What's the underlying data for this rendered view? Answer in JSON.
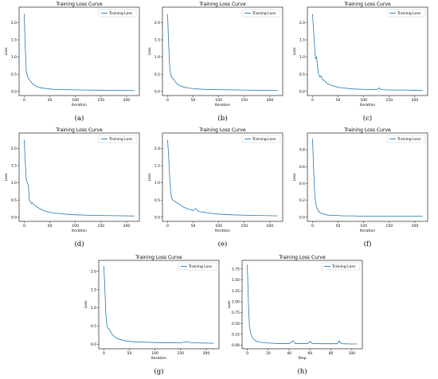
{
  "colors": {
    "line": "#1f77b4",
    "axis": "#000000",
    "legend_border": "#cccccc"
  },
  "chart_data": [
    {
      "type": "line",
      "sublabel": "(a)",
      "title": "Training Loss Curve",
      "xlabel": "Iteration",
      "ylabel": "Loss",
      "xlim": [
        -10,
        225
      ],
      "ylim": [
        -0.12,
        2.45
      ],
      "xticks": [
        0,
        50,
        100,
        150,
        200
      ],
      "yticks": [
        0.0,
        0.5,
        1.0,
        1.5,
        2.0
      ],
      "ytick_labels": [
        "0.0",
        "0.5",
        "1.0",
        "1.5",
        "2.0"
      ],
      "legend": "upper right",
      "series": [
        {
          "name": "Training Loss",
          "x": [
            0,
            2,
            4,
            6,
            8,
            10,
            12,
            15,
            20,
            25,
            30,
            40,
            50,
            60,
            80,
            100,
            125,
            150,
            175,
            200,
            215
          ],
          "y": [
            2.25,
            1.3,
            0.6,
            0.45,
            0.38,
            0.34,
            0.3,
            0.24,
            0.18,
            0.14,
            0.11,
            0.09,
            0.07,
            0.06,
            0.05,
            0.045,
            0.04,
            0.035,
            0.03,
            0.03,
            0.025
          ]
        }
      ]
    },
    {
      "type": "line",
      "sublabel": "(b)",
      "title": "Training Loss Curve",
      "xlabel": "Iteration",
      "ylabel": "Loss",
      "xlim": [
        -10,
        225
      ],
      "ylim": [
        -0.12,
        2.45
      ],
      "xticks": [
        0,
        50,
        100,
        150,
        200
      ],
      "yticks": [
        0.0,
        0.5,
        1.0,
        1.5,
        2.0
      ],
      "ytick_labels": [
        "0.0",
        "0.5",
        "1.0",
        "1.5",
        "2.0"
      ],
      "legend": "upper right",
      "series": [
        {
          "name": "Training Loss",
          "x": [
            0,
            2,
            4,
            6,
            8,
            10,
            12,
            15,
            20,
            25,
            30,
            40,
            50,
            60,
            80,
            100,
            125,
            150,
            175,
            200,
            215
          ],
          "y": [
            2.25,
            1.4,
            0.75,
            0.5,
            0.42,
            0.38,
            0.35,
            0.28,
            0.2,
            0.16,
            0.13,
            0.1,
            0.08,
            0.07,
            0.055,
            0.05,
            0.045,
            0.04,
            0.035,
            0.03,
            0.03
          ]
        }
      ]
    },
    {
      "type": "line",
      "sublabel": "(c)",
      "title": "Training Loss Curve",
      "xlabel": "Iteration",
      "ylabel": "Loss",
      "xlim": [
        -10,
        225
      ],
      "ylim": [
        -0.12,
        2.45
      ],
      "xticks": [
        0,
        50,
        100,
        150,
        200
      ],
      "yticks": [
        0.0,
        0.5,
        1.0,
        1.5,
        2.0
      ],
      "ytick_labels": [
        "0.0",
        "0.5",
        "1.0",
        "1.5",
        "2.0"
      ],
      "legend": "upper right",
      "series": [
        {
          "name": "Training Loss",
          "x": [
            0,
            2,
            4,
            6,
            8,
            10,
            12,
            14,
            16,
            20,
            25,
            30,
            40,
            50,
            60,
            80,
            100,
            125,
            130,
            135,
            150,
            175,
            200,
            215
          ],
          "y": [
            2.25,
            1.8,
            1.3,
            0.95,
            1.0,
            0.7,
            0.5,
            0.42,
            0.45,
            0.35,
            0.28,
            0.22,
            0.16,
            0.12,
            0.1,
            0.07,
            0.06,
            0.05,
            0.1,
            0.05,
            0.04,
            0.04,
            0.035,
            0.03
          ]
        }
      ]
    },
    {
      "type": "line",
      "sublabel": "(d)",
      "title": "Training Loss Curve",
      "xlabel": "Iteration",
      "ylabel": "Loss",
      "xlim": [
        -10,
        225
      ],
      "ylim": [
        -0.12,
        2.45
      ],
      "xticks": [
        0,
        50,
        100,
        150,
        200
      ],
      "yticks": [
        0.0,
        0.5,
        1.0,
        1.5,
        2.0
      ],
      "ytick_labels": [
        "0.0",
        "0.5",
        "1.0",
        "1.5",
        "2.0"
      ],
      "legend": "upper right",
      "series": [
        {
          "name": "Training Loss",
          "x": [
            0,
            2,
            4,
            6,
            8,
            10,
            12,
            14,
            16,
            20,
            25,
            30,
            40,
            50,
            60,
            80,
            100,
            125,
            150,
            175,
            200,
            215
          ],
          "y": [
            2.25,
            1.6,
            1.1,
            1.0,
            0.95,
            0.5,
            0.45,
            0.4,
            0.42,
            0.35,
            0.3,
            0.25,
            0.18,
            0.14,
            0.12,
            0.09,
            0.07,
            0.06,
            0.05,
            0.045,
            0.04,
            0.035
          ]
        }
      ]
    },
    {
      "type": "line",
      "sublabel": "(e)",
      "title": "Training Loss Curve",
      "xlabel": "Iteration",
      "ylabel": "Loss",
      "xlim": [
        -10,
        225
      ],
      "ylim": [
        -0.12,
        2.45
      ],
      "xticks": [
        0,
        50,
        100,
        150,
        200
      ],
      "yticks": [
        0.0,
        0.5,
        1.0,
        1.5,
        2.0
      ],
      "ytick_labels": [
        "0.0",
        "0.5",
        "1.0",
        "1.5",
        "2.0"
      ],
      "legend": "upper right",
      "series": [
        {
          "name": "Training Loss",
          "x": [
            0,
            2,
            4,
            6,
            8,
            10,
            12,
            15,
            18,
            20,
            25,
            30,
            40,
            50,
            55,
            60,
            80,
            100,
            125,
            150,
            175,
            200,
            215
          ],
          "y": [
            2.25,
            1.8,
            1.2,
            0.75,
            0.55,
            0.5,
            0.48,
            0.45,
            0.42,
            0.4,
            0.36,
            0.3,
            0.24,
            0.2,
            0.25,
            0.17,
            0.12,
            0.09,
            0.07,
            0.06,
            0.05,
            0.045,
            0.04
          ]
        }
      ]
    },
    {
      "type": "line",
      "sublabel": "(f)",
      "title": "Training Loss Curve",
      "xlabel": "Iteration",
      "ylabel": "Loss",
      "xlim": [
        -10,
        225
      ],
      "ylim": [
        -0.05,
        1.0
      ],
      "xticks": [
        0,
        50,
        100,
        150,
        200
      ],
      "yticks": [
        0.0,
        0.2,
        0.4,
        0.6,
        0.8
      ],
      "ytick_labels": [
        "0.0",
        "0.2",
        "0.4",
        "0.6",
        "0.8"
      ],
      "legend": "upper right",
      "series": [
        {
          "name": "Training Loss",
          "x": [
            0,
            2,
            4,
            6,
            8,
            10,
            12,
            15,
            20,
            25,
            30,
            40,
            50,
            60,
            80,
            100,
            125,
            150,
            175,
            200,
            215
          ],
          "y": [
            0.93,
            0.6,
            0.3,
            0.17,
            0.12,
            0.09,
            0.07,
            0.05,
            0.04,
            0.03,
            0.025,
            0.02,
            0.02,
            0.015,
            0.015,
            0.01,
            0.01,
            0.01,
            0.01,
            0.01,
            0.01
          ]
        }
      ]
    },
    {
      "type": "line",
      "sublabel": "(g)",
      "title": "Training Loss Curve",
      "xlabel": "Iteration",
      "ylabel": "Loss",
      "xlim": [
        -10,
        225
      ],
      "ylim": [
        -0.12,
        2.3
      ],
      "xticks": [
        0,
        50,
        100,
        150,
        200
      ],
      "yticks": [
        0.0,
        0.5,
        1.0,
        1.5,
        2.0
      ],
      "ytick_labels": [
        "0.0",
        "0.5",
        "1.0",
        "1.5",
        "2.0"
      ],
      "legend": "upper right",
      "series": [
        {
          "name": "Training Loss",
          "x": [
            0,
            2,
            4,
            6,
            8,
            10,
            12,
            15,
            20,
            25,
            30,
            40,
            50,
            60,
            80,
            100,
            125,
            150,
            160,
            175,
            200,
            215
          ],
          "y": [
            2.15,
            1.5,
            0.8,
            0.5,
            0.45,
            0.42,
            0.38,
            0.3,
            0.22,
            0.17,
            0.14,
            0.1,
            0.08,
            0.07,
            0.06,
            0.05,
            0.045,
            0.04,
            0.07,
            0.04,
            0.035,
            0.03
          ]
        }
      ]
    },
    {
      "type": "line",
      "sublabel": "(h)",
      "title": "Training Loss Curve",
      "xlabel": "Step",
      "ylabel": "Loss",
      "xlim": [
        -5,
        110
      ],
      "ylim": [
        -0.08,
        1.95
      ],
      "xticks": [
        0,
        20,
        40,
        60,
        80,
        100
      ],
      "yticks": [
        0.0,
        0.25,
        0.5,
        0.75,
        1.0,
        1.25,
        1.5,
        1.75
      ],
      "ytick_labels": [
        "0.00",
        "0.25",
        "0.50",
        "0.75",
        "1.00",
        "1.25",
        "1.50",
        "1.75"
      ],
      "legend": "upper right",
      "series": [
        {
          "name": "Training Loss",
          "x": [
            0,
            1,
            2,
            3,
            4,
            5,
            6,
            8,
            10,
            15,
            20,
            30,
            40,
            44,
            46,
            50,
            58,
            60,
            62,
            70,
            80,
            86,
            88,
            90,
            100,
            105
          ],
          "y": [
            1.85,
            1.0,
            0.45,
            0.3,
            0.22,
            0.17,
            0.14,
            0.1,
            0.08,
            0.06,
            0.05,
            0.04,
            0.04,
            0.1,
            0.04,
            0.04,
            0.04,
            0.09,
            0.04,
            0.035,
            0.035,
            0.035,
            0.1,
            0.035,
            0.03,
            0.03
          ]
        }
      ]
    }
  ]
}
